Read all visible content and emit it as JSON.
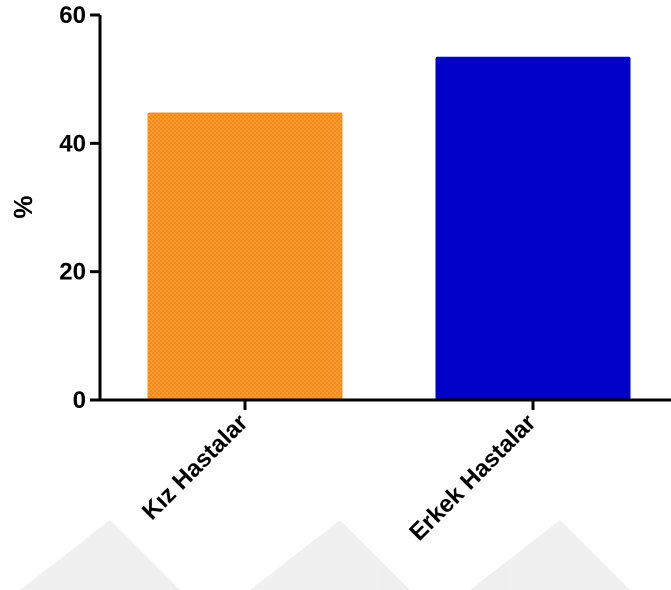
{
  "chart_data": {
    "type": "bar",
    "categories": [
      "Kız Hastalar",
      "Erkek Hastalar"
    ],
    "values": [
      44.8,
      53.5
    ],
    "title": "",
    "xlabel": "",
    "ylabel": "%",
    "ylim": [
      0,
      60
    ],
    "yticks": [
      0,
      20,
      40,
      60
    ],
    "grid": false,
    "colors": [
      "#FF9326",
      "#0000C8"
    ],
    "patterns": [
      "checkered",
      "solid"
    ]
  }
}
